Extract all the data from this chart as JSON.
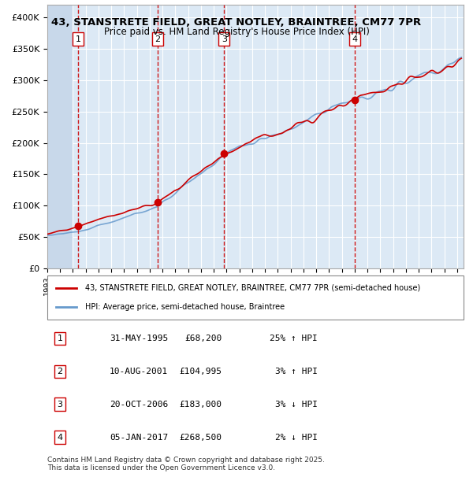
{
  "title_line1": "43, STANSTRETE FIELD, GREAT NOTLEY, BRAINTREE, CM77 7PR",
  "title_line2": "Price paid vs. HM Land Registry's House Price Index (HPI)",
  "ylabel": "",
  "background_color": "#dce9f5",
  "plot_bg_color": "#dce9f5",
  "hatch_color": "#c0d0e8",
  "grid_color": "#ffffff",
  "red_line_color": "#cc0000",
  "blue_line_color": "#6699cc",
  "sale_marker_color": "#cc0000",
  "vline_color": "#cc0000",
  "yticks": [
    0,
    50000,
    100000,
    150000,
    200000,
    250000,
    300000,
    350000,
    400000
  ],
  "ylim": [
    0,
    420000
  ],
  "xlim_start": 1993.0,
  "xlim_end": 2025.5,
  "sales": [
    {
      "label": "1",
      "date_num": 1995.41,
      "price": 68200
    },
    {
      "label": "2",
      "date_num": 2001.61,
      "price": 104995
    },
    {
      "label": "3",
      "date_num": 2006.8,
      "price": 183000
    },
    {
      "label": "4",
      "date_num": 2017.01,
      "price": 268500
    }
  ],
  "legend_entries": [
    "43, STANSTRETE FIELD, GREAT NOTLEY, BRAINTREE, CM77 7PR (semi-detached house)",
    "HPI: Average price, semi-detached house, Braintree"
  ],
  "table_data": [
    [
      "1",
      "31-MAY-1995",
      "£68,200",
      "25% ↑ HPI"
    ],
    [
      "2",
      "10-AUG-2001",
      "£104,995",
      "3% ↑ HPI"
    ],
    [
      "3",
      "20-OCT-2006",
      "£183,000",
      "3% ↓ HPI"
    ],
    [
      "4",
      "05-JAN-2017",
      "£268,500",
      "2% ↓ HPI"
    ]
  ],
  "footer": "Contains HM Land Registry data © Crown copyright and database right 2025.\nThis data is licensed under the Open Government Licence v3.0."
}
